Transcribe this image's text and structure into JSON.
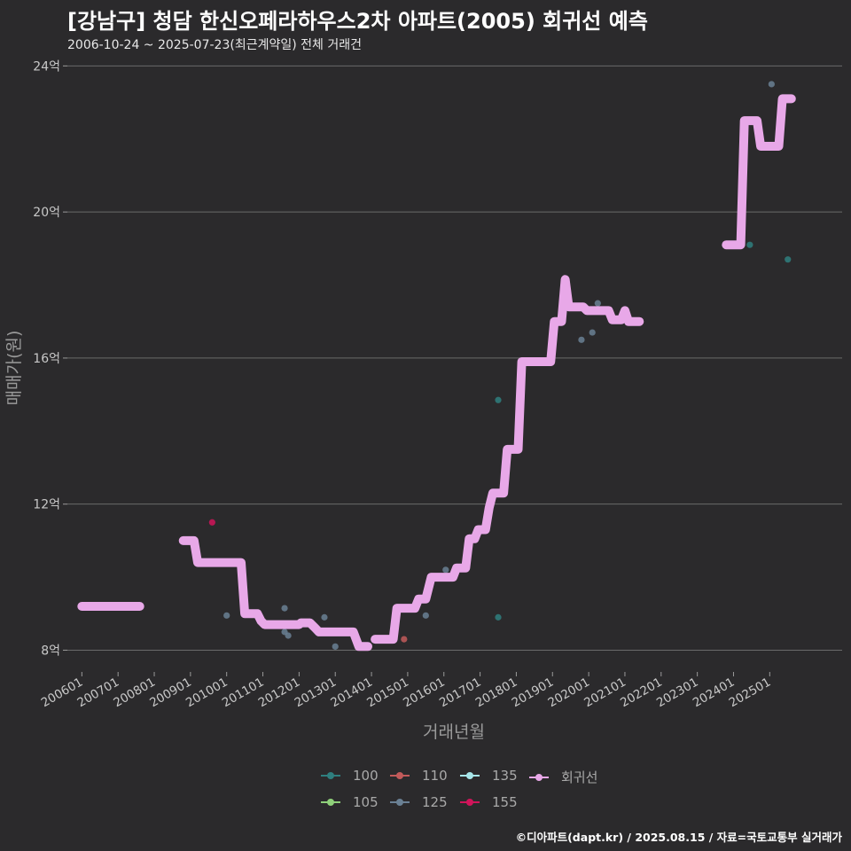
{
  "header": {
    "title": "[강남구] 청담 한신오페라하우스2차 아파트(2005) 회귀선 예측",
    "subtitle": "2006-10-24 ~ 2025-07-23(최근계약일) 전체 거래건"
  },
  "footer": {
    "credit": "©디아파트(dapt.kr) / 2025.08.15 / 자료=국토교통부 실거래가"
  },
  "legend": {
    "items": [
      {
        "label": "100",
        "color": "#2f7f7f"
      },
      {
        "label": "105",
        "color": "#8fd07a"
      },
      {
        "label": "110",
        "color": "#c25a5a"
      },
      {
        "label": "125",
        "color": "#6a8094"
      },
      {
        "label": "135",
        "color": "#a7e6ea"
      },
      {
        "label": "155",
        "color": "#d0145a"
      },
      {
        "label": "회귀선",
        "color": "#e8a8e8"
      }
    ]
  },
  "chart_data": {
    "type": "line",
    "title": "[강남구] 청담 한신오페라하우스2차 아파트(2005) 회귀선 예측",
    "xlabel": "거래년월",
    "ylabel": "매매가(원)",
    "x_ticks": [
      "200601",
      "200701",
      "200801",
      "200901",
      "201001",
      "201101",
      "201201",
      "201301",
      "201401",
      "201501",
      "201601",
      "201701",
      "201801",
      "201901",
      "202001",
      "202101",
      "202201",
      "202301",
      "202401",
      "202501"
    ],
    "y_ticks": [
      {
        "value": 8,
        "label": "8억"
      },
      {
        "value": 12,
        "label": "12억"
      },
      {
        "value": 16,
        "label": "16억"
      },
      {
        "value": 20,
        "label": "20억"
      },
      {
        "value": 24,
        "label": "24억"
      }
    ],
    "xlim": [
      2005.6,
      2027.0
    ],
    "ylim": [
      7.55,
      24.3
    ],
    "regression_segments": [
      [
        [
          2006.0,
          9.2
        ],
        [
          2007.6,
          9.2
        ]
      ],
      [
        [
          2008.8,
          11.0
        ],
        [
          2009.1,
          11.0
        ],
        [
          2009.2,
          10.4
        ],
        [
          2010.4,
          10.4
        ],
        [
          2010.5,
          9.0
        ],
        [
          2010.85,
          9.0
        ],
        [
          2010.95,
          8.8
        ],
        [
          2011.05,
          8.7
        ],
        [
          2012.0,
          8.7
        ],
        [
          2012.05,
          8.75
        ],
        [
          2012.3,
          8.75
        ],
        [
          2012.45,
          8.6
        ],
        [
          2012.55,
          8.5
        ],
        [
          2013.5,
          8.5
        ],
        [
          2013.65,
          8.1
        ],
        [
          2013.9,
          8.1
        ]
      ],
      [
        [
          2014.1,
          8.3
        ],
        [
          2014.6,
          8.3
        ],
        [
          2014.7,
          9.15
        ],
        [
          2015.2,
          9.15
        ],
        [
          2015.3,
          9.4
        ],
        [
          2015.5,
          9.4
        ],
        [
          2015.65,
          10.0
        ],
        [
          2016.25,
          10.0
        ],
        [
          2016.35,
          10.25
        ],
        [
          2016.6,
          10.25
        ],
        [
          2016.7,
          11.05
        ],
        [
          2016.85,
          11.05
        ],
        [
          2016.95,
          11.3
        ],
        [
          2017.15,
          11.3
        ],
        [
          2017.25,
          11.9
        ],
        [
          2017.35,
          12.3
        ],
        [
          2017.65,
          12.3
        ],
        [
          2017.75,
          13.5
        ],
        [
          2018.05,
          13.5
        ],
        [
          2018.15,
          15.9
        ],
        [
          2018.95,
          15.9
        ],
        [
          2019.05,
          17.0
        ],
        [
          2019.25,
          17.0
        ],
        [
          2019.35,
          18.15
        ],
        [
          2019.45,
          17.4
        ],
        [
          2019.85,
          17.4
        ],
        [
          2019.95,
          17.3
        ],
        [
          2020.55,
          17.3
        ],
        [
          2020.65,
          17.05
        ],
        [
          2020.9,
          17.05
        ],
        [
          2021.0,
          17.3
        ],
        [
          2021.1,
          17.0
        ],
        [
          2021.4,
          17.0
        ]
      ],
      [
        [
          2023.8,
          19.1
        ],
        [
          2024.2,
          19.1
        ],
        [
          2024.3,
          22.5
        ],
        [
          2024.65,
          22.5
        ],
        [
          2024.75,
          21.8
        ],
        [
          2025.25,
          21.8
        ],
        [
          2025.35,
          23.1
        ],
        [
          2025.6,
          23.1
        ]
      ]
    ],
    "points": [
      {
        "x": 2009.6,
        "y": 11.5,
        "series": "155"
      },
      {
        "x": 2009.7,
        "y": 10.4,
        "series": "125"
      },
      {
        "x": 2010.0,
        "y": 8.95,
        "series": "125"
      },
      {
        "x": 2011.6,
        "y": 9.15,
        "series": "125"
      },
      {
        "x": 2011.6,
        "y": 8.5,
        "series": "125"
      },
      {
        "x": 2011.7,
        "y": 8.4,
        "series": "125"
      },
      {
        "x": 2012.7,
        "y": 8.9,
        "series": "125"
      },
      {
        "x": 2013.0,
        "y": 8.1,
        "series": "125"
      },
      {
        "x": 2014.9,
        "y": 8.3,
        "series": "110"
      },
      {
        "x": 2015.5,
        "y": 8.95,
        "series": "125"
      },
      {
        "x": 2016.05,
        "y": 10.2,
        "series": "125"
      },
      {
        "x": 2017.5,
        "y": 14.85,
        "series": "100"
      },
      {
        "x": 2017.5,
        "y": 8.9,
        "series": "100"
      },
      {
        "x": 2019.8,
        "y": 16.5,
        "series": "125"
      },
      {
        "x": 2020.1,
        "y": 16.7,
        "series": "125"
      },
      {
        "x": 2020.25,
        "y": 17.5,
        "series": "125"
      },
      {
        "x": 2024.45,
        "y": 19.1,
        "series": "100"
      },
      {
        "x": 2025.05,
        "y": 23.5,
        "series": "125"
      },
      {
        "x": 2025.5,
        "y": 18.7,
        "series": "100"
      }
    ]
  }
}
